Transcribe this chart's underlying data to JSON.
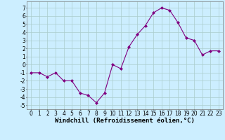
{
  "x": [
    0,
    1,
    2,
    3,
    4,
    5,
    6,
    7,
    8,
    9,
    10,
    11,
    12,
    13,
    14,
    15,
    16,
    17,
    18,
    19,
    20,
    21,
    22,
    23
  ],
  "y": [
    -1,
    -1,
    -1.5,
    -1,
    -2,
    -2,
    -3.5,
    -3.8,
    -4.7,
    -3.5,
    0,
    -0.5,
    2.2,
    3.7,
    4.8,
    6.4,
    7,
    6.7,
    5.2,
    3.3,
    3,
    1.2,
    1.7,
    1.7
  ],
  "line_color": "#800080",
  "marker": "D",
  "marker_size": 2,
  "bg_color": "#cceeff",
  "grid_color": "#aacccc",
  "xlabel": "Windchill (Refroidissement éolien,°C)",
  "xlabel_fontsize": 6.5,
  "tick_fontsize": 5.5,
  "ylim": [
    -5.5,
    7.8
  ],
  "xlim": [
    -0.5,
    23.5
  ],
  "yticks": [
    -5,
    -4,
    -3,
    -2,
    -1,
    0,
    1,
    2,
    3,
    4,
    5,
    6,
    7
  ],
  "xticks": [
    0,
    1,
    2,
    3,
    4,
    5,
    6,
    7,
    8,
    9,
    10,
    11,
    12,
    13,
    14,
    15,
    16,
    17,
    18,
    19,
    20,
    21,
    22,
    23
  ]
}
